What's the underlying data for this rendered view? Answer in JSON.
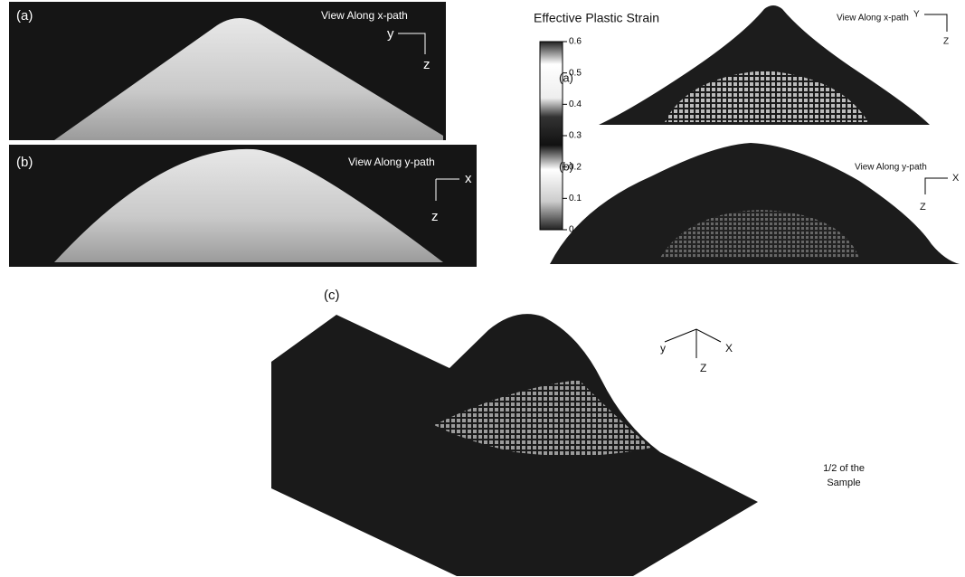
{
  "left": {
    "a": {
      "label": "(a)",
      "view": "View Along x-path",
      "axis_h": "y",
      "axis_v": "z"
    },
    "b": {
      "label": "(b)",
      "view": "View Along y-path",
      "axis_h": "x",
      "axis_v": "z"
    }
  },
  "right": {
    "colorbar": {
      "title": "Effective Plastic Strain",
      "lim": [
        0,
        0.6
      ],
      "ticks": [
        0,
        0.1,
        0.2,
        0.3,
        0.4,
        0.5,
        0.6
      ]
    },
    "a": {
      "label": "(a)",
      "view": "View Along x-path",
      "axis_h": "Y",
      "axis_v": "Z"
    },
    "b": {
      "label": "(b)",
      "view": "View Along y-path",
      "axis_h": "X",
      "axis_v": "Z"
    }
  },
  "c": {
    "label": "(c)",
    "axis_y": "y",
    "axis_x": "X",
    "axis_z": "Z",
    "note": [
      "1/2 of the",
      "Sample"
    ]
  }
}
